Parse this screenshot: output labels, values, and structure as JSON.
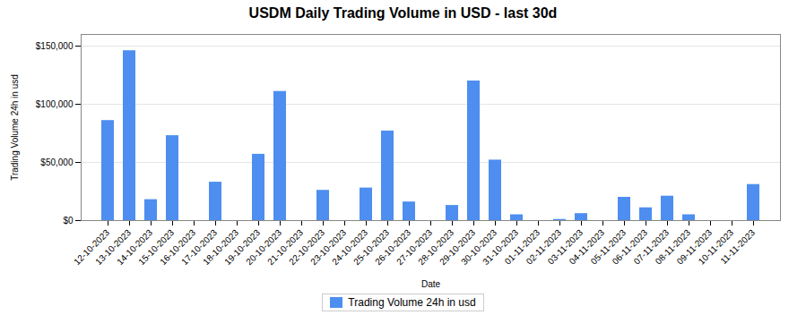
{
  "chart_data": {
    "type": "bar",
    "title": "USDM Daily Trading Volume in USD - last 30d",
    "xlabel": "Date",
    "ylabel": "Trading Volume 24h in usd",
    "categories": [
      "12-10-2023",
      "13-10-2023",
      "14-10-2023",
      "15-10-2023",
      "16-10-2023",
      "17-10-2023",
      "18-10-2023",
      "19-10-2023",
      "20-10-2023",
      "21-10-2023",
      "22-10-2023",
      "23-10-2023",
      "24-10-2023",
      "25-10-2023",
      "26-10-2023",
      "27-10-2023",
      "28-10-2023",
      "29-10-2023",
      "30-10-2023",
      "31-10-2023",
      "01-11-2023",
      "02-11-2023",
      "03-11-2023",
      "04-11-2023",
      "05-11-2023",
      "06-11-2023",
      "07-11-2023",
      "08-11-2023",
      "09-11-2023",
      "10-11-2023",
      "11-11-2023"
    ],
    "series": [
      {
        "name": "Trading Volume 24h in usd",
        "color": "#4d8ef0",
        "values": [
          86000,
          146000,
          18000,
          73000,
          0,
          33000,
          0,
          57000,
          111000,
          0,
          26000,
          0,
          28000,
          77000,
          16000,
          0,
          13000,
          120000,
          52000,
          5000,
          0,
          1000,
          6000,
          0,
          20000,
          11000,
          21000,
          5000,
          0,
          0,
          31000
        ]
      }
    ],
    "ylim": [
      0,
      160000
    ],
    "yticks": [
      {
        "value": 0,
        "label": "$0"
      },
      {
        "value": 50000,
        "label": "$50,000"
      },
      {
        "value": 100000,
        "label": "$100,000"
      },
      {
        "value": 150000,
        "label": "$150,000"
      }
    ],
    "grid": true,
    "legend": "bottom"
  }
}
